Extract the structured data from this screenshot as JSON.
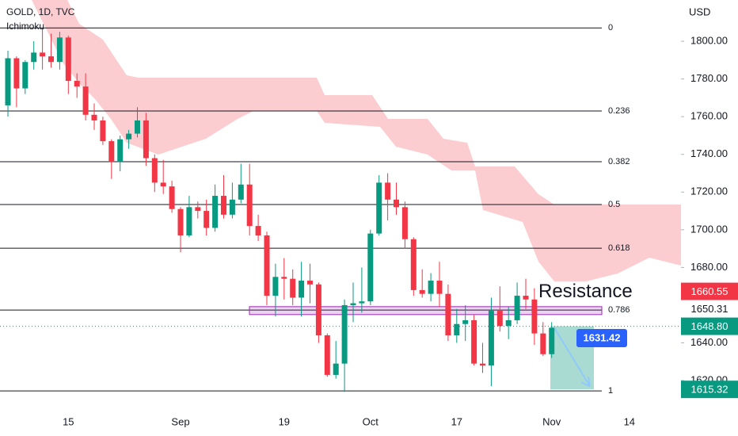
{
  "header": {
    "symbol": "GOLD, 1D, TVC",
    "indicator": "Ichimoku",
    "currency": "USD"
  },
  "chart_data": {
    "type": "candlestick",
    "categories": [
      null,
      null,
      null,
      null,
      null,
      null,
      null,
      "15",
      null,
      null,
      null,
      null,
      null,
      null,
      null,
      null,
      null,
      null,
      null,
      null,
      "Sep",
      null,
      null,
      null,
      null,
      null,
      null,
      null,
      null,
      null,
      null,
      null,
      "19",
      null,
      null,
      null,
      null,
      null,
      null,
      null,
      null,
      null,
      "Oct",
      null,
      null,
      null,
      null,
      null,
      null,
      null,
      null,
      null,
      "17",
      null,
      null,
      null,
      null,
      null,
      null,
      null,
      null,
      null,
      null,
      "Nov",
      null,
      null,
      null,
      null,
      null,
      null,
      null,
      null,
      "14"
    ],
    "open": [
      1766,
      1791,
      1775,
      1789,
      1794,
      1792,
      1789,
      1802,
      1779,
      1776,
      1761,
      1758,
      1747,
      1736,
      1748,
      1751,
      1758,
      1738,
      1725,
      1723,
      1711,
      1697,
      1712,
      1710,
      1701,
      1718,
      1708,
      1716,
      1724,
      1702,
      1697,
      1665,
      1675,
      1674,
      1664,
      1673,
      1671,
      1644,
      1623,
      1629,
      1660,
      1661,
      1662,
      1698,
      1725,
      1716,
      1712,
      1695,
      1668,
      1666,
      1673,
      1666,
      1644,
      1650,
      1652,
      1629,
      1628,
      1657,
      1649,
      1652,
      1665,
      1663,
      1645,
      1634,
      null,
      null,
      null,
      null,
      null,
      null,
      null,
      null,
      null
    ],
    "high": [
      1795,
      1792,
      1790,
      1800,
      1807,
      1804,
      1805,
      1803,
      1783,
      1783,
      1767,
      1760,
      1748,
      1750,
      1753,
      1765,
      1762,
      1740,
      1737,
      1726,
      1712,
      1718,
      1715,
      1716,
      1724,
      1729,
      1725,
      1735,
      1735,
      1708,
      1699,
      1682,
      1685,
      1679,
      1683,
      1682,
      1672,
      1645,
      1641,
      1663,
      1672,
      1680,
      1700,
      1729,
      1730,
      1725,
      1715,
      1696,
      1679,
      1677,
      1683,
      1671,
      1658,
      1660,
      1655,
      1640,
      1664,
      1670,
      1659,
      1672,
      1674,
      1669,
      1651,
      1651,
      null,
      null,
      null,
      null,
      null,
      null,
      null,
      null,
      null
    ],
    "low": [
      1760,
      1765,
      1772,
      1785,
      1785,
      1786,
      1785,
      1772,
      1770,
      1758,
      1753,
      1745,
      1727,
      1731,
      1743,
      1749,
      1734,
      1720,
      1719,
      1709,
      1688,
      1696,
      1706,
      1697,
      1699,
      1706,
      1706,
      1714,
      1697,
      1694,
      1660,
      1654,
      1663,
      1660,
      1654,
      1661,
      1640,
      1622,
      1621,
      1614,
      1651,
      1656,
      1660,
      1697,
      1705,
      1708,
      1690,
      1665,
      1664,
      1662,
      1659,
      1641,
      1640,
      1641,
      1628,
      1624,
      1617,
      1646,
      1642,
      1650,
      1658,
      1639,
      1633,
      1632,
      null,
      null,
      null,
      null,
      null,
      null,
      null,
      null,
      null
    ],
    "close": [
      1791,
      1775,
      1789,
      1794,
      1792,
      1789,
      1802,
      1779,
      1776,
      1761,
      1758,
      1747,
      1736,
      1748,
      1751,
      1758,
      1738,
      1725,
      1723,
      1711,
      1697,
      1712,
      1710,
      1701,
      1718,
      1708,
      1716,
      1724,
      1702,
      1697,
      1665,
      1675,
      1674,
      1664,
      1673,
      1671,
      1644,
      1623,
      1629,
      1660,
      1661,
      1662,
      1698,
      1725,
      1716,
      1712,
      1695,
      1668,
      1666,
      1673,
      1666,
      1644,
      1650,
      1652,
      1629,
      1628,
      1657,
      1649,
      1652,
      1665,
      1663,
      1645,
      1634,
      1648,
      null,
      null,
      null,
      null,
      null,
      null,
      null,
      null,
      null
    ],
    "up_color": "#089981",
    "down_color": "#f23645",
    "ylim": [
      1603.2,
      1821.9
    ],
    "yticks": [
      {
        "value": 1620,
        "label": "1620.00"
      },
      {
        "value": 1640,
        "label": "1640.00"
      },
      {
        "value": 1680,
        "label": "1680.00"
      },
      {
        "value": 1700,
        "label": "1700.00"
      },
      {
        "value": 1720,
        "label": "1720.00"
      },
      {
        "value": 1740,
        "label": "1740.00"
      },
      {
        "value": 1760,
        "label": "1760.00"
      },
      {
        "value": 1780,
        "label": "1780.00"
      },
      {
        "value": 1800,
        "label": "1800.00"
      }
    ],
    "fib_levels": [
      {
        "ratio": 0,
        "price": 1807.1
      },
      {
        "ratio": 0.236,
        "price": 1763
      },
      {
        "ratio": 0.382,
        "price": 1736.1
      },
      {
        "ratio": 0.5,
        "price": 1713.4
      },
      {
        "ratio": 0.618,
        "price": 1690.2
      },
      {
        "ratio": 0.786,
        "price": 1657.4
      },
      {
        "ratio": 1,
        "price": 1614.5
      }
    ],
    "resistance_zone": {
      "label": "Resistance",
      "top": 1659.2,
      "bottom": 1655
    },
    "current_price": 1648.8,
    "price_tags": [
      {
        "value": 1660.55,
        "label": "1660.55",
        "color": "#f23645"
      },
      {
        "value": 1650.31,
        "label": "1650.31",
        "color": "#ffffff"
      },
      {
        "value": 1648.8,
        "label": "1648.80",
        "color": "#089981"
      },
      {
        "value": 1615.32,
        "label": "1615.32",
        "color": "#089981"
      }
    ],
    "target": {
      "value": 1631.42,
      "label": "1631.42"
    }
  }
}
